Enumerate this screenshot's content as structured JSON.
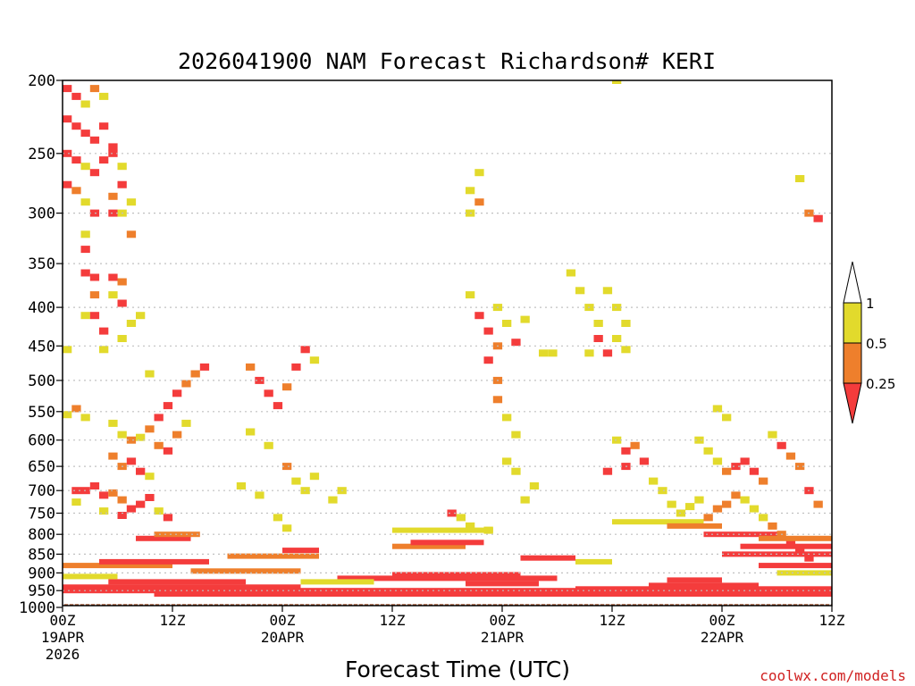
{
  "chart_data": {
    "type": "heatmap",
    "title": "2026041900 NAM Forecast Richardson# KERI",
    "xlabel": "Forecast Time (UTC)",
    "ylabel": "",
    "watermark": "coolwx.com/models",
    "x_unit": "hours from 2026-04-19 00Z",
    "xlim": [
      0,
      84
    ],
    "y_unit": "hPa",
    "ylim": [
      1000,
      200
    ],
    "y_scale": "log",
    "grid": true,
    "ytick_labels": [
      "200",
      "250",
      "300",
      "350",
      "400",
      "450",
      "500",
      "550",
      "600",
      "650",
      "700",
      "750",
      "800",
      "850",
      "900",
      "950",
      "1000"
    ],
    "xtick_labels": [
      {
        "hour": 0,
        "lines": [
          "00Z",
          "19APR",
          "2026"
        ]
      },
      {
        "hour": 12,
        "lines": [
          "12Z"
        ]
      },
      {
        "hour": 24,
        "lines": [
          "00Z",
          "20APR"
        ]
      },
      {
        "hour": 36,
        "lines": [
          "12Z"
        ]
      },
      {
        "hour": 48,
        "lines": [
          "00Z",
          "21APR"
        ]
      },
      {
        "hour": 60,
        "lines": [
          "12Z"
        ]
      },
      {
        "hour": 72,
        "lines": [
          "00Z",
          "22APR"
        ]
      },
      {
        "hour": 84,
        "lines": [
          "12Z"
        ]
      }
    ],
    "ground_level_hpa": 990,
    "colors": {
      "ri_lt_0.25": "#f43c3c",
      "ri_0.25_0.5": "#ee7f2c",
      "ri_0.5_1": "#e2da2c",
      "ground": "#a0522d",
      "frame": "#000000",
      "grid": "#c0c0c0",
      "gridline_ground": "#ffffff"
    },
    "legend": {
      "placement": "right",
      "bins": [
        {
          "label": "1",
          "color": "#ffffff"
        },
        {
          "label": "0.5",
          "color": "#e2da2c"
        },
        {
          "label": "0.25",
          "color": "#ee7f2c"
        },
        {
          "label": "",
          "color": "#f43c3c"
        }
      ]
    },
    "category_codes": {
      "1": "Ri < 0.25",
      "2": "0.25 <= Ri < 0.5",
      "3": "0.5 <= Ri < 1"
    },
    "cells": [
      [
        0,
        205,
        1
      ],
      [
        1,
        210,
        1
      ],
      [
        2,
        215,
        3
      ],
      [
        3,
        205,
        2
      ],
      [
        4,
        210,
        3
      ],
      [
        0,
        225,
        1
      ],
      [
        1,
        230,
        1
      ],
      [
        2,
        235,
        1
      ],
      [
        3,
        240,
        1
      ],
      [
        4,
        230,
        1
      ],
      [
        5,
        245,
        1
      ],
      [
        0,
        250,
        1
      ],
      [
        1,
        255,
        1
      ],
      [
        2,
        260,
        3
      ],
      [
        3,
        265,
        1
      ],
      [
        4,
        255,
        1
      ],
      [
        5,
        250,
        1
      ],
      [
        6,
        260,
        3
      ],
      [
        0,
        275,
        1
      ],
      [
        1,
        280,
        2
      ],
      [
        2,
        290,
        3
      ],
      [
        3,
        300,
        1
      ],
      [
        5,
        285,
        2
      ],
      [
        6,
        275,
        1
      ],
      [
        7,
        290,
        3
      ],
      [
        5,
        300,
        1
      ],
      [
        6,
        300,
        3
      ],
      [
        7,
        320,
        2
      ],
      [
        2,
        320,
        3
      ],
      [
        2,
        335,
        1
      ],
      [
        2,
        360,
        1
      ],
      [
        3,
        365,
        1
      ],
      [
        5,
        365,
        1
      ],
      [
        6,
        370,
        2
      ],
      [
        5,
        385,
        3
      ],
      [
        6,
        395,
        1
      ],
      [
        3,
        385,
        2
      ],
      [
        2,
        410,
        3
      ],
      [
        3,
        410,
        1
      ],
      [
        7,
        420,
        3
      ],
      [
        4,
        430,
        1
      ],
      [
        6,
        440,
        3
      ],
      [
        8,
        410,
        3
      ],
      [
        0,
        455,
        3
      ],
      [
        4,
        455,
        3
      ],
      [
        9,
        490,
        3
      ],
      [
        1,
        545,
        2
      ],
      [
        0,
        555,
        3
      ],
      [
        2,
        560,
        3
      ],
      [
        5,
        570,
        3
      ],
      [
        6,
        590,
        3
      ],
      [
        7,
        600,
        2
      ],
      [
        8,
        595,
        3
      ],
      [
        9,
        580,
        2
      ],
      [
        10,
        560,
        1
      ],
      [
        11,
        540,
        1
      ],
      [
        12,
        520,
        1
      ],
      [
        13,
        505,
        2
      ],
      [
        14,
        490,
        2
      ],
      [
        15,
        480,
        1
      ],
      [
        10,
        610,
        2
      ],
      [
        11,
        620,
        1
      ],
      [
        12,
        590,
        2
      ],
      [
        13,
        570,
        3
      ],
      [
        5,
        630,
        2
      ],
      [
        6,
        650,
        2
      ],
      [
        7,
        640,
        1
      ],
      [
        8,
        660,
        1
      ],
      [
        9,
        670,
        3
      ],
      [
        1,
        700,
        1
      ],
      [
        2,
        700,
        1
      ],
      [
        3,
        690,
        1
      ],
      [
        4,
        710,
        1
      ],
      [
        5,
        705,
        2
      ],
      [
        6,
        720,
        2
      ],
      [
        7,
        740,
        1
      ],
      [
        8,
        730,
        1
      ],
      [
        9,
        715,
        1
      ],
      [
        1,
        725,
        3
      ],
      [
        4,
        745,
        3
      ],
      [
        6,
        755,
        1
      ],
      [
        10,
        745,
        3
      ],
      [
        11,
        760,
        1
      ],
      [
        20,
        480,
        2
      ],
      [
        21,
        500,
        1
      ],
      [
        22,
        520,
        1
      ],
      [
        23,
        540,
        1
      ],
      [
        24,
        510,
        2
      ],
      [
        25,
        480,
        1
      ],
      [
        26,
        455,
        1
      ],
      [
        27,
        470,
        3
      ],
      [
        20,
        585,
        3
      ],
      [
        22,
        610,
        3
      ],
      [
        24,
        650,
        2
      ],
      [
        25,
        680,
        3
      ],
      [
        26,
        700,
        3
      ],
      [
        27,
        670,
        3
      ],
      [
        29,
        720,
        3
      ],
      [
        30,
        700,
        3
      ],
      [
        19,
        690,
        3
      ],
      [
        21,
        710,
        3
      ],
      [
        23,
        760,
        3
      ],
      [
        24,
        785,
        3
      ],
      [
        44,
        280,
        3
      ],
      [
        45,
        290,
        2
      ],
      [
        44,
        300,
        3
      ],
      [
        45,
        265,
        3
      ],
      [
        44,
        385,
        3
      ],
      [
        45,
        410,
        1
      ],
      [
        46,
        430,
        1
      ],
      [
        47,
        450,
        2
      ],
      [
        46,
        470,
        1
      ],
      [
        47,
        500,
        2
      ],
      [
        47,
        530,
        2
      ],
      [
        48,
        560,
        3
      ],
      [
        49,
        590,
        3
      ],
      [
        47,
        400,
        3
      ],
      [
        48,
        420,
        3
      ],
      [
        49,
        445,
        1
      ],
      [
        50,
        415,
        3
      ],
      [
        52,
        460,
        3
      ],
      [
        53,
        460,
        3
      ],
      [
        55,
        360,
        3
      ],
      [
        56,
        380,
        3
      ],
      [
        57,
        400,
        3
      ],
      [
        58,
        420,
        3
      ],
      [
        59,
        380,
        3
      ],
      [
        60,
        400,
        3
      ],
      [
        58,
        440,
        1
      ],
      [
        59,
        460,
        1
      ],
      [
        60,
        440,
        3
      ],
      [
        61,
        420,
        3
      ],
      [
        57,
        460,
        3
      ],
      [
        61,
        455,
        3
      ],
      [
        60,
        200,
        3
      ],
      [
        48,
        640,
        3
      ],
      [
        49,
        660,
        3
      ],
      [
        51,
        690,
        3
      ],
      [
        50,
        720,
        3
      ],
      [
        42,
        750,
        1
      ],
      [
        43,
        760,
        3
      ],
      [
        44,
        780,
        3
      ],
      [
        46,
        790,
        3
      ],
      [
        60,
        600,
        3
      ],
      [
        61,
        620,
        1
      ],
      [
        62,
        610,
        2
      ],
      [
        63,
        640,
        1
      ],
      [
        61,
        650,
        1
      ],
      [
        59,
        660,
        1
      ],
      [
        64,
        680,
        3
      ],
      [
        65,
        700,
        3
      ],
      [
        66,
        730,
        3
      ],
      [
        67,
        750,
        3
      ],
      [
        68,
        735,
        3
      ],
      [
        69,
        720,
        3
      ],
      [
        70,
        760,
        2
      ],
      [
        71,
        740,
        2
      ],
      [
        72,
        730,
        2
      ],
      [
        73,
        710,
        2
      ],
      [
        69,
        600,
        3
      ],
      [
        70,
        620,
        3
      ],
      [
        71,
        640,
        3
      ],
      [
        72,
        660,
        2
      ],
      [
        73,
        650,
        1
      ],
      [
        74,
        640,
        1
      ],
      [
        75,
        660,
        1
      ],
      [
        76,
        680,
        2
      ],
      [
        71,
        545,
        3
      ],
      [
        72,
        560,
        3
      ],
      [
        77,
        590,
        3
      ],
      [
        78,
        610,
        1
      ],
      [
        79,
        630,
        2
      ],
      [
        80,
        650,
        2
      ],
      [
        81,
        700,
        1
      ],
      [
        82,
        730,
        2
      ],
      [
        80,
        270,
        3
      ],
      [
        81,
        300,
        2
      ],
      [
        82,
        305,
        1
      ],
      [
        74,
        720,
        3
      ],
      [
        75,
        740,
        3
      ],
      [
        76,
        760,
        3
      ],
      [
        77,
        780,
        2
      ],
      [
        78,
        800,
        2
      ],
      [
        79,
        820,
        1
      ],
      [
        80,
        840,
        1
      ],
      [
        81,
        860,
        1
      ]
    ],
    "bands": [
      {
        "pressure": 950,
        "from": 0,
        "to": 84,
        "cat": 1
      },
      {
        "pressure": 940,
        "from": 0,
        "to": 26,
        "cat": 1
      },
      {
        "pressure": 925,
        "from": 5,
        "to": 20,
        "cat": 1
      },
      {
        "pressure": 915,
        "from": 30,
        "to": 54,
        "cat": 1
      },
      {
        "pressure": 905,
        "from": 36,
        "to": 50,
        "cat": 1
      },
      {
        "pressure": 930,
        "from": 44,
        "to": 52,
        "cat": 1
      },
      {
        "pressure": 945,
        "from": 56,
        "to": 84,
        "cat": 1
      },
      {
        "pressure": 935,
        "from": 64,
        "to": 76,
        "cat": 1
      },
      {
        "pressure": 920,
        "from": 66,
        "to": 72,
        "cat": 1
      },
      {
        "pressure": 960,
        "from": 10,
        "to": 84,
        "cat": 1
      },
      {
        "pressure": 895,
        "from": 14,
        "to": 26,
        "cat": 2
      },
      {
        "pressure": 880,
        "from": 0,
        "to": 12,
        "cat": 2
      },
      {
        "pressure": 870,
        "from": 4,
        "to": 16,
        "cat": 1
      },
      {
        "pressure": 855,
        "from": 18,
        "to": 28,
        "cat": 2
      },
      {
        "pressure": 840,
        "from": 24,
        "to": 28,
        "cat": 1
      },
      {
        "pressure": 830,
        "from": 36,
        "to": 44,
        "cat": 2
      },
      {
        "pressure": 820,
        "from": 38,
        "to": 46,
        "cat": 1
      },
      {
        "pressure": 810,
        "from": 8,
        "to": 14,
        "cat": 1
      },
      {
        "pressure": 800,
        "from": 10,
        "to": 15,
        "cat": 2
      },
      {
        "pressure": 790,
        "from": 36,
        "to": 47,
        "cat": 3
      },
      {
        "pressure": 860,
        "from": 50,
        "to": 56,
        "cat": 1
      },
      {
        "pressure": 870,
        "from": 56,
        "to": 60,
        "cat": 3
      },
      {
        "pressure": 800,
        "from": 70,
        "to": 78,
        "cat": 1
      },
      {
        "pressure": 810,
        "from": 76,
        "to": 84,
        "cat": 2
      },
      {
        "pressure": 830,
        "from": 74,
        "to": 84,
        "cat": 1
      },
      {
        "pressure": 850,
        "from": 72,
        "to": 84,
        "cat": 1
      },
      {
        "pressure": 880,
        "from": 76,
        "to": 84,
        "cat": 1
      },
      {
        "pressure": 900,
        "from": 78,
        "to": 84,
        "cat": 3
      },
      {
        "pressure": 770,
        "from": 60,
        "to": 70,
        "cat": 3
      },
      {
        "pressure": 780,
        "from": 66,
        "to": 72,
        "cat": 2
      },
      {
        "pressure": 910,
        "from": 0,
        "to": 6,
        "cat": 3
      },
      {
        "pressure": 925,
        "from": 26,
        "to": 34,
        "cat": 3
      }
    ]
  }
}
